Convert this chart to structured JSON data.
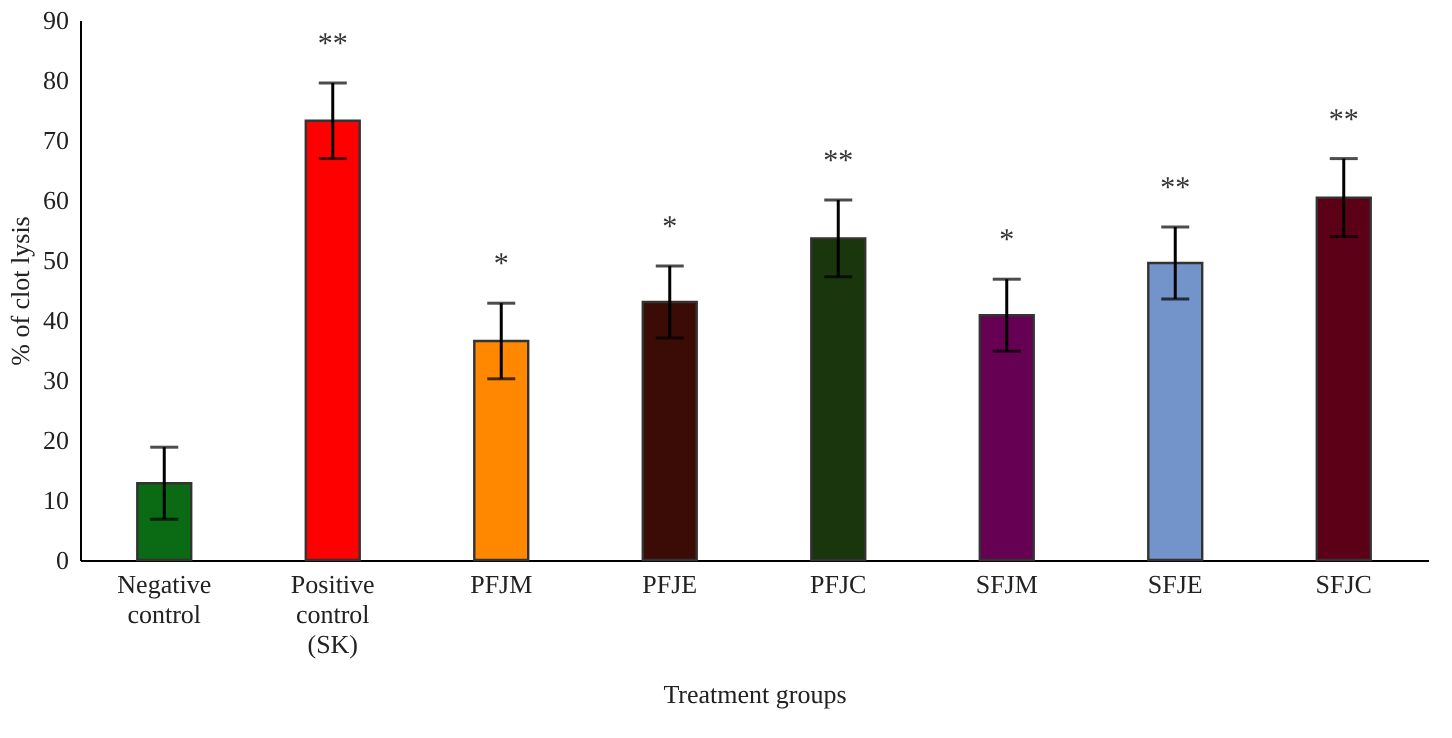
{
  "chart_data": {
    "type": "bar",
    "xlabel": "Treatment groups",
    "ylabel": "% of clot lysis",
    "categories": [
      "Negative control",
      "Positive control (SK)",
      "PFJM",
      "PFJE",
      "PFJC",
      "SFJM",
      "SFJE",
      "SFJC"
    ],
    "values": [
      12.8,
      73.2,
      36.5,
      43.0,
      53.6,
      40.8,
      49.5,
      60.4
    ],
    "errors": [
      6.0,
      6.3,
      6.3,
      6.0,
      6.4,
      6.0,
      6.0,
      6.5
    ],
    "value_labels": [
      null,
      "**",
      "*",
      "*",
      "**",
      "*",
      "**",
      "**"
    ],
    "colors": [
      "#0b6a14",
      "#ff0000",
      "#ff8800",
      "#3b0c06",
      "#1a360c",
      "#660052",
      "#7393cb",
      "#5c0018"
    ],
    "ylim": [
      0,
      90
    ],
    "yticks": [
      0,
      10,
      20,
      30,
      40,
      50,
      60,
      70,
      80,
      90
    ]
  }
}
